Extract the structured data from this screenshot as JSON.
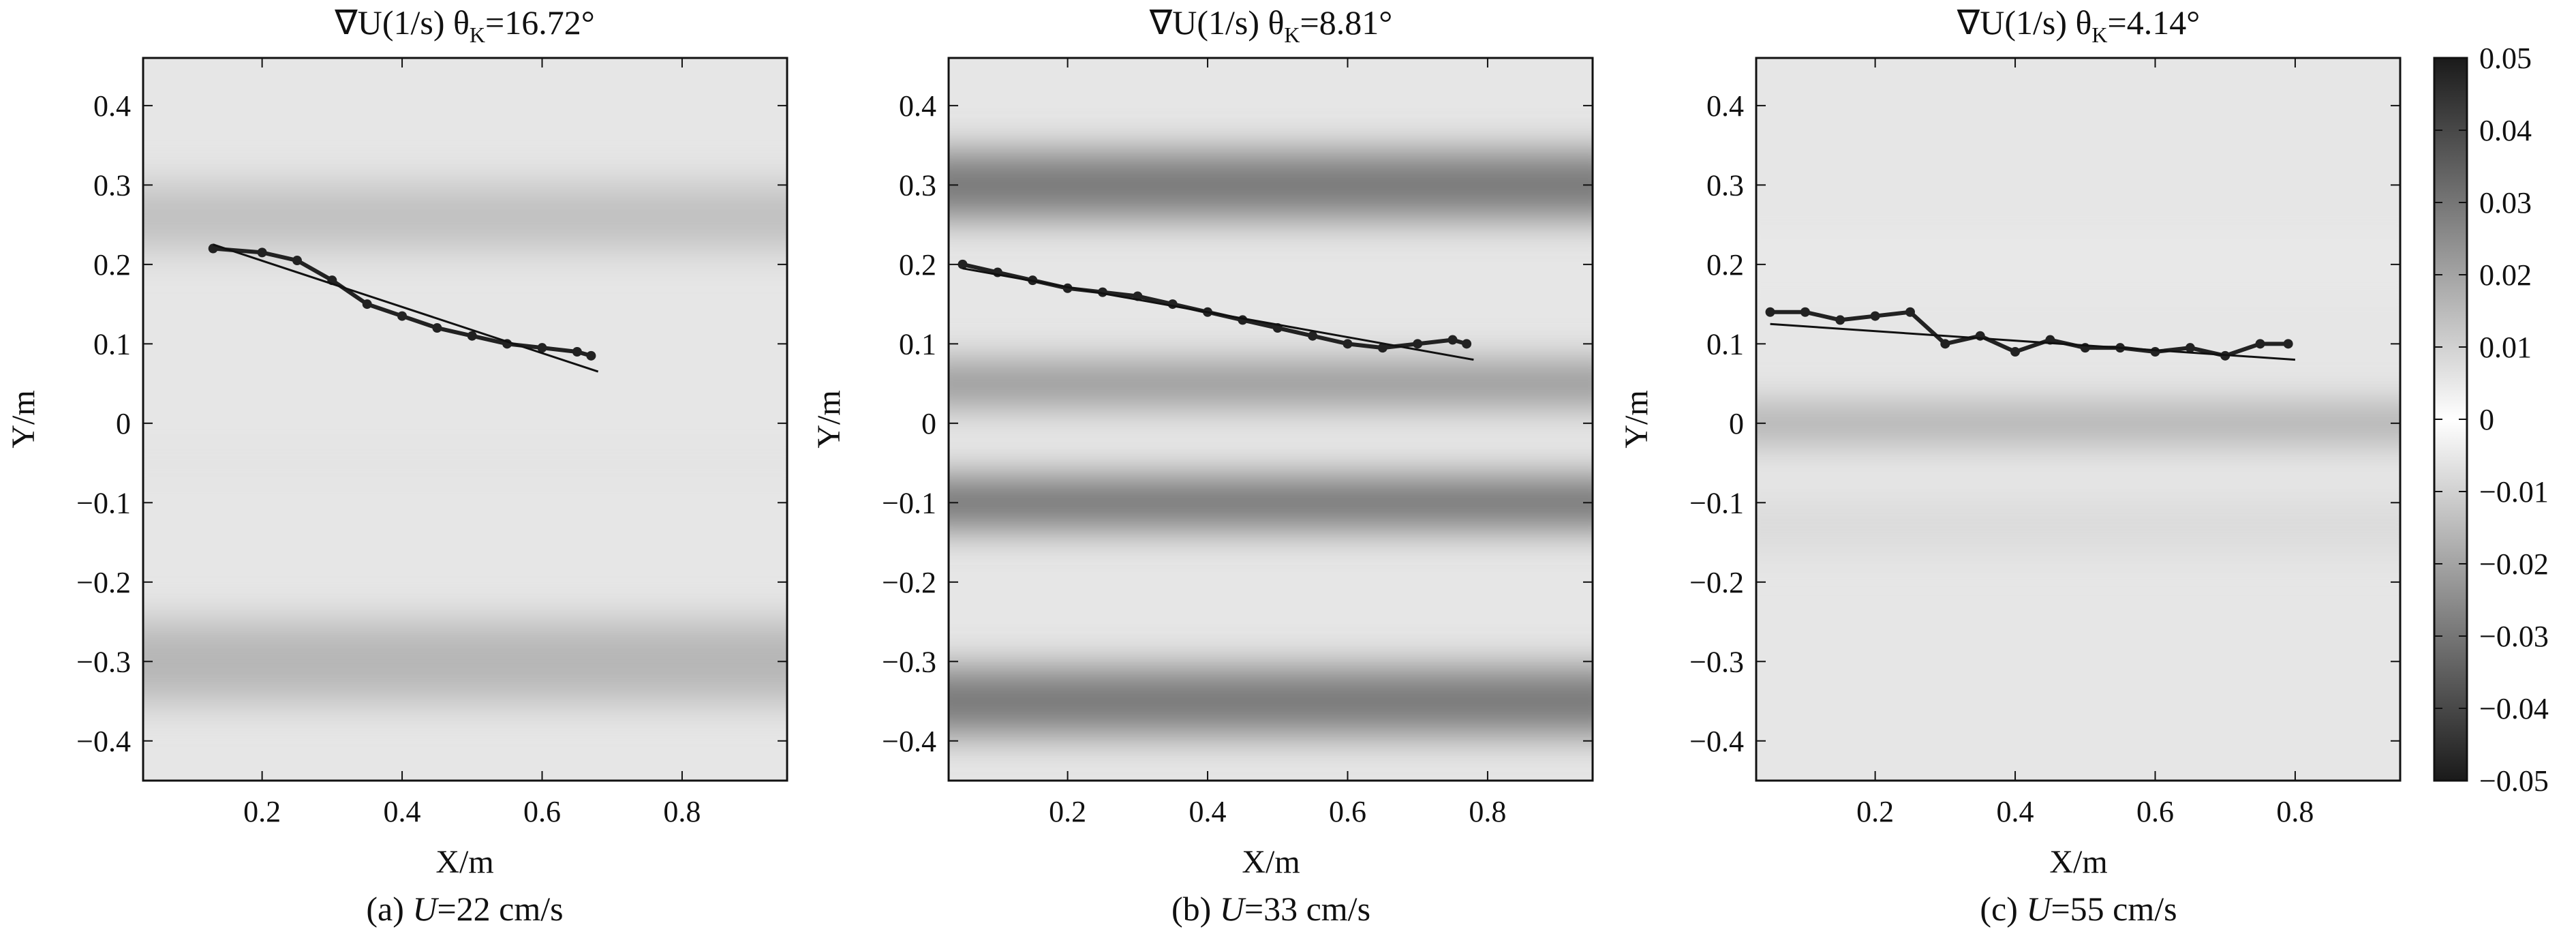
{
  "chart_data": [
    {
      "type": "heatmap",
      "title_prefix": "∇U(1/s) θ",
      "title_sub": "K",
      "title_value": "=16.72°",
      "xlabel": "X/m",
      "ylabel": "Y/m",
      "caption_prefix": "(a) ",
      "caption_var": "U",
      "caption_value": "=22 cm/s",
      "xlim": [
        0.03,
        0.95
      ],
      "ylim": [
        -0.45,
        0.46
      ],
      "xticks": [
        "0.2",
        "0.4",
        "0.6",
        "0.8"
      ],
      "xtick_values": [
        0.2,
        0.4,
        0.6,
        0.8
      ],
      "yticks": [
        "0.4",
        "0.3",
        "0.2",
        "0.1",
        "0",
        "−0.1",
        "−0.2",
        "−0.3",
        "−0.4"
      ],
      "ytick_values": [
        0.4,
        0.3,
        0.2,
        0.1,
        0,
        -0.1,
        -0.2,
        -0.3,
        -0.4
      ],
      "theta_k_deg": 16.72,
      "U_cm_s": 22,
      "interface_points": [
        [
          0.13,
          0.22
        ],
        [
          0.2,
          0.215
        ],
        [
          0.25,
          0.205
        ],
        [
          0.3,
          0.18
        ],
        [
          0.35,
          0.15
        ],
        [
          0.4,
          0.135
        ],
        [
          0.45,
          0.12
        ],
        [
          0.5,
          0.11
        ],
        [
          0.55,
          0.1
        ],
        [
          0.6,
          0.095
        ],
        [
          0.65,
          0.09
        ],
        [
          0.67,
          0.085
        ]
      ],
      "fit_line": [
        [
          0.13,
          0.225
        ],
        [
          0.68,
          0.065
        ]
      ],
      "bands": [
        {
          "y": 0.26,
          "value": -0.014,
          "width": 0.08
        },
        {
          "y": -0.3,
          "value": -0.016,
          "width": 0.1
        },
        {
          "y": -0.05,
          "value": -0.006,
          "width": 0.06
        }
      ]
    },
    {
      "type": "heatmap",
      "title_prefix": "∇U(1/s) θ",
      "title_sub": "K",
      "title_value": "=8.81°",
      "xlabel": "X/m",
      "ylabel": "Y/m",
      "caption_prefix": "(b) ",
      "caption_var": "U",
      "caption_value": "=33 cm/s",
      "xlim": [
        0.03,
        0.95
      ],
      "ylim": [
        -0.45,
        0.46
      ],
      "xticks": [
        "0.2",
        "0.4",
        "0.6",
        "0.8"
      ],
      "xtick_values": [
        0.2,
        0.4,
        0.6,
        0.8
      ],
      "yticks": [
        "0.4",
        "0.3",
        "0.2",
        "0.1",
        "0",
        "−0.1",
        "−0.2",
        "−0.3",
        "−0.4"
      ],
      "ytick_values": [
        0.4,
        0.3,
        0.2,
        0.1,
        0,
        -0.1,
        -0.2,
        -0.3,
        -0.4
      ],
      "theta_k_deg": 8.81,
      "U_cm_s": 33,
      "interface_points": [
        [
          0.05,
          0.2
        ],
        [
          0.1,
          0.19
        ],
        [
          0.15,
          0.18
        ],
        [
          0.2,
          0.17
        ],
        [
          0.25,
          0.165
        ],
        [
          0.3,
          0.16
        ],
        [
          0.35,
          0.15
        ],
        [
          0.4,
          0.14
        ],
        [
          0.45,
          0.13
        ],
        [
          0.5,
          0.12
        ],
        [
          0.55,
          0.11
        ],
        [
          0.6,
          0.1
        ],
        [
          0.65,
          0.095
        ],
        [
          0.7,
          0.1
        ],
        [
          0.75,
          0.105
        ],
        [
          0.77,
          0.1
        ]
      ],
      "fit_line": [
        [
          0.05,
          0.195
        ],
        [
          0.78,
          0.08
        ]
      ],
      "bands": [
        {
          "y": 0.3,
          "value": -0.03,
          "width": 0.08
        },
        {
          "y": 0.05,
          "value": -0.025,
          "width": 0.05
        },
        {
          "y": -0.1,
          "value": -0.032,
          "width": 0.06
        },
        {
          "y": -0.35,
          "value": -0.03,
          "width": 0.08
        }
      ]
    },
    {
      "type": "heatmap",
      "title_prefix": "∇U(1/s) θ",
      "title_sub": "K",
      "title_value": "=4.14°",
      "xlabel": "X/m",
      "ylabel": "Y/m",
      "caption_prefix": "(c) ",
      "caption_var": "U",
      "caption_value": "=55 cm/s",
      "xlim": [
        0.03,
        0.95
      ],
      "ylim": [
        -0.45,
        0.46
      ],
      "xticks": [
        "0.2",
        "0.4",
        "0.6",
        "0.8"
      ],
      "xtick_values": [
        0.2,
        0.4,
        0.6,
        0.8
      ],
      "yticks": [
        "0.4",
        "0.3",
        "0.2",
        "0.1",
        "0",
        "−0.1",
        "−0.2",
        "−0.3",
        "−0.4"
      ],
      "ytick_values": [
        0.4,
        0.3,
        0.2,
        0.1,
        0,
        -0.1,
        -0.2,
        -0.3,
        -0.4
      ],
      "theta_k_deg": 4.14,
      "U_cm_s": 55,
      "interface_points": [
        [
          0.05,
          0.14
        ],
        [
          0.1,
          0.14
        ],
        [
          0.15,
          0.13
        ],
        [
          0.2,
          0.135
        ],
        [
          0.25,
          0.14
        ],
        [
          0.3,
          0.1
        ],
        [
          0.35,
          0.11
        ],
        [
          0.4,
          0.09
        ],
        [
          0.45,
          0.105
        ],
        [
          0.5,
          0.095
        ],
        [
          0.55,
          0.095
        ],
        [
          0.6,
          0.09
        ],
        [
          0.65,
          0.095
        ],
        [
          0.7,
          0.085
        ],
        [
          0.75,
          0.1
        ],
        [
          0.79,
          0.1
        ]
      ],
      "fit_line": [
        [
          0.05,
          0.125
        ],
        [
          0.8,
          0.08
        ]
      ],
      "bands": [
        {
          "y": 0.0,
          "value": -0.02,
          "width": 0.04
        },
        {
          "y": -0.13,
          "value": -0.008,
          "width": 0.06
        },
        {
          "y": 0.2,
          "value": -0.005,
          "width": 0.08
        }
      ]
    }
  ],
  "colorbar": {
    "ticks": [
      "0.05",
      "0.04",
      "0.03",
      "0.02",
      "0.01",
      "0",
      "−0.01",
      "−0.02",
      "−0.03",
      "−0.04",
      "−0.05"
    ],
    "tick_values": [
      0.05,
      0.04,
      0.03,
      0.02,
      0.01,
      0,
      -0.01,
      -0.02,
      -0.03,
      -0.04,
      -0.05
    ],
    "range": [
      -0.05,
      0.05
    ],
    "dark_color": "#1a1a1a",
    "light_color": "#ffffff"
  },
  "colors": {
    "axis": "#111111",
    "interface": "#222222",
    "fit_line": "#111111",
    "field_base": "#e6e6e6"
  }
}
